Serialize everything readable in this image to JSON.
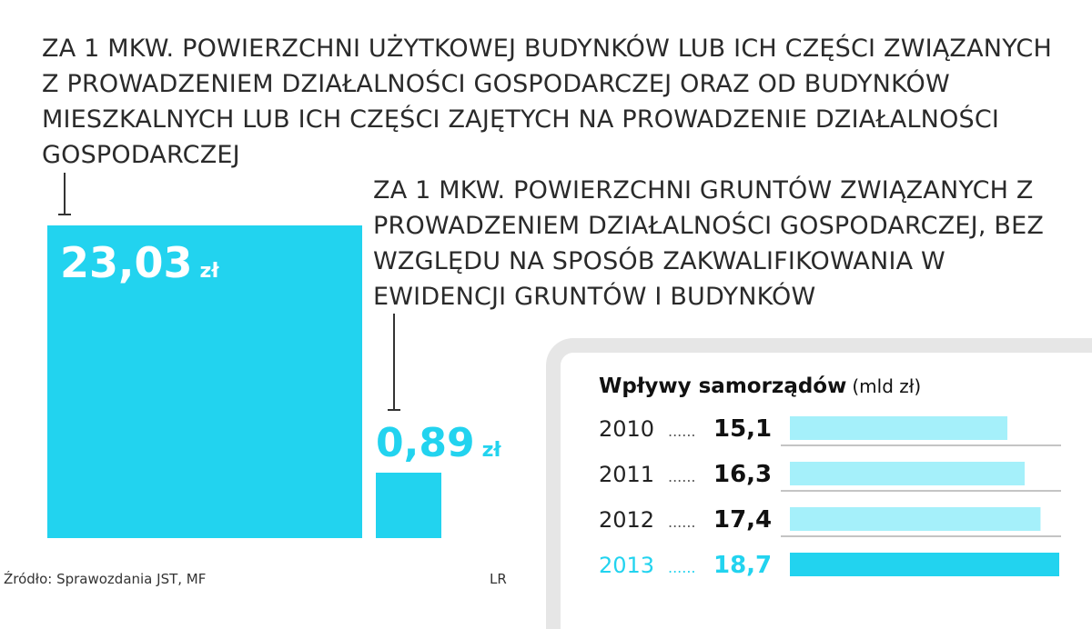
{
  "building_caption": "Za 1 mkw. powierzchni użytkowej budynków lub ich części związanych z prowadzeniem działalności gospodarczej oraz od budynków mieszkalnych lub ich części zajętych na prowadzenie działalności gospodarczej",
  "land_caption": "Za 1 mkw. powierzchni gruntów związanych z prowadzeniem działalności gospodarczej, bez względu na sposób zakwalifikowania w ewidencji gruntów i budynków",
  "building_value": "23,03",
  "land_value": "0,89",
  "unit": "zł",
  "source": "Źródło: Sprawozdania JST, MF",
  "author": "LR",
  "colors": {
    "accent": "#22d3ef",
    "accent_light": "#a5f0fa",
    "text": "#111111"
  },
  "chart_data": {
    "type": "bar",
    "orientation": "horizontal",
    "title": "Wpływy samorządów",
    "unit_label": "(mld zł)",
    "categories": [
      "2010",
      "2011",
      "2012",
      "2013"
    ],
    "values": [
      15.1,
      16.3,
      17.4,
      18.7
    ],
    "value_labels": [
      "15,1",
      "16,3",
      "17,4",
      "18,7"
    ],
    "highlight": "2013",
    "grid": false,
    "legend": "none"
  }
}
